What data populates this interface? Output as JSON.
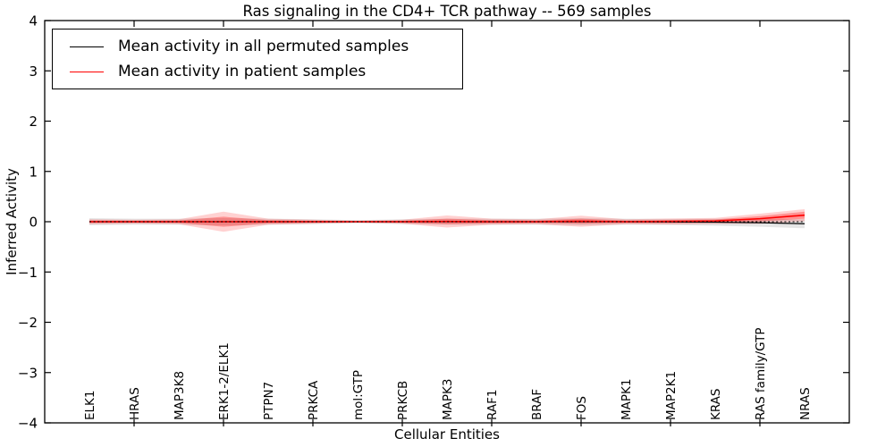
{
  "title": "Ras signaling in the CD4+ TCR pathway -- 569 samples",
  "legend": {
    "position": "upper left",
    "items": [
      {
        "label": "Mean activity in all permuted samples",
        "color": "#000000"
      },
      {
        "label": "Mean activity in patient samples",
        "color": "#ff0000"
      }
    ]
  },
  "chart_data": {
    "type": "line",
    "title": "Ras signaling in the CD4+ TCR pathway -- 569 samples",
    "xlabel": "Cellular Entities",
    "ylabel": "Inferred Activity",
    "ylim": [
      -4,
      4
    ],
    "ytick_values": [
      4,
      3,
      2,
      1,
      0,
      -1,
      -2,
      -3,
      -4
    ],
    "ytick_labels": [
      "4",
      "3",
      "2",
      "1",
      "0",
      "−1",
      "−2",
      "−3",
      "−4"
    ],
    "x_major_tick_indices": [
      1,
      3,
      5,
      7,
      9,
      11,
      13,
      15
    ],
    "grid": false,
    "legend_position": "upper left",
    "zero_line": {
      "style": "dotted",
      "color": "#000000",
      "y": 0
    },
    "categories": [
      "ELK1",
      "HRAS",
      "MAP3K8",
      "ERK1-2/ELK1",
      "PTPN7",
      "PRKCA",
      "mol:GTP",
      "PRKCB",
      "MAPK3",
      "RAF1",
      "BRAF",
      "FOS",
      "MAPK1",
      "MAP2K1",
      "KRAS",
      "RAS family/GTP",
      "NRAS"
    ],
    "series": [
      {
        "name": "Mean activity in all permuted samples",
        "color": "#000000",
        "values": [
          0,
          0,
          0,
          0,
          0,
          0,
          0,
          0,
          0,
          0,
          0,
          0,
          0,
          -0.005,
          -0.01,
          -0.02,
          -0.04
        ]
      },
      {
        "name": "Mean activity in patient samples",
        "color": "#ff0000",
        "values": [
          0,
          0,
          0,
          0,
          0,
          0,
          0,
          0,
          0.005,
          0,
          0,
          0.01,
          0,
          0.005,
          0.015,
          0.06,
          0.13
        ]
      }
    ],
    "bands": [
      {
        "name": "permuted-samples-spread",
        "color": "rgba(0,0,0,0.10)",
        "upper": [
          0.07,
          0.06,
          0.06,
          0.07,
          0.06,
          0.05,
          0.03,
          0.05,
          0.06,
          0.06,
          0.06,
          0.07,
          0.06,
          0.055,
          0.06,
          0.06,
          0.05
        ],
        "lower": [
          -0.07,
          -0.06,
          -0.06,
          -0.07,
          -0.06,
          -0.05,
          -0.03,
          -0.05,
          -0.06,
          -0.06,
          -0.06,
          -0.07,
          -0.06,
          -0.065,
          -0.08,
          -0.1,
          -0.13
        ]
      },
      {
        "name": "patient-samples-spread-outer",
        "color": "rgba(255,0,0,0.18)",
        "upper": [
          0.05,
          0.04,
          0.05,
          0.2,
          0.06,
          0.04,
          0.02,
          0.04,
          0.125,
          0.06,
          0.05,
          0.12,
          0.05,
          0.065,
          0.075,
          0.16,
          0.25
        ],
        "lower": [
          -0.05,
          -0.04,
          -0.05,
          -0.2,
          -0.06,
          -0.04,
          -0.02,
          -0.04,
          -0.115,
          -0.06,
          -0.05,
          -0.1,
          -0.05,
          -0.055,
          -0.045,
          -0.04,
          0.01
        ]
      },
      {
        "name": "patient-samples-spread-inner",
        "color": "rgba(255,0,0,0.30)",
        "upper": [
          0.025,
          0.02,
          0.025,
          0.1,
          0.03,
          0.02,
          0.01,
          0.02,
          0.06,
          0.03,
          0.025,
          0.06,
          0.025,
          0.035,
          0.045,
          0.11,
          0.2
        ],
        "lower": [
          -0.025,
          -0.02,
          -0.025,
          -0.1,
          -0.03,
          -0.02,
          -0.01,
          -0.02,
          -0.05,
          -0.03,
          -0.025,
          -0.04,
          -0.025,
          -0.025,
          -0.015,
          0.01,
          0.06
        ]
      }
    ]
  }
}
